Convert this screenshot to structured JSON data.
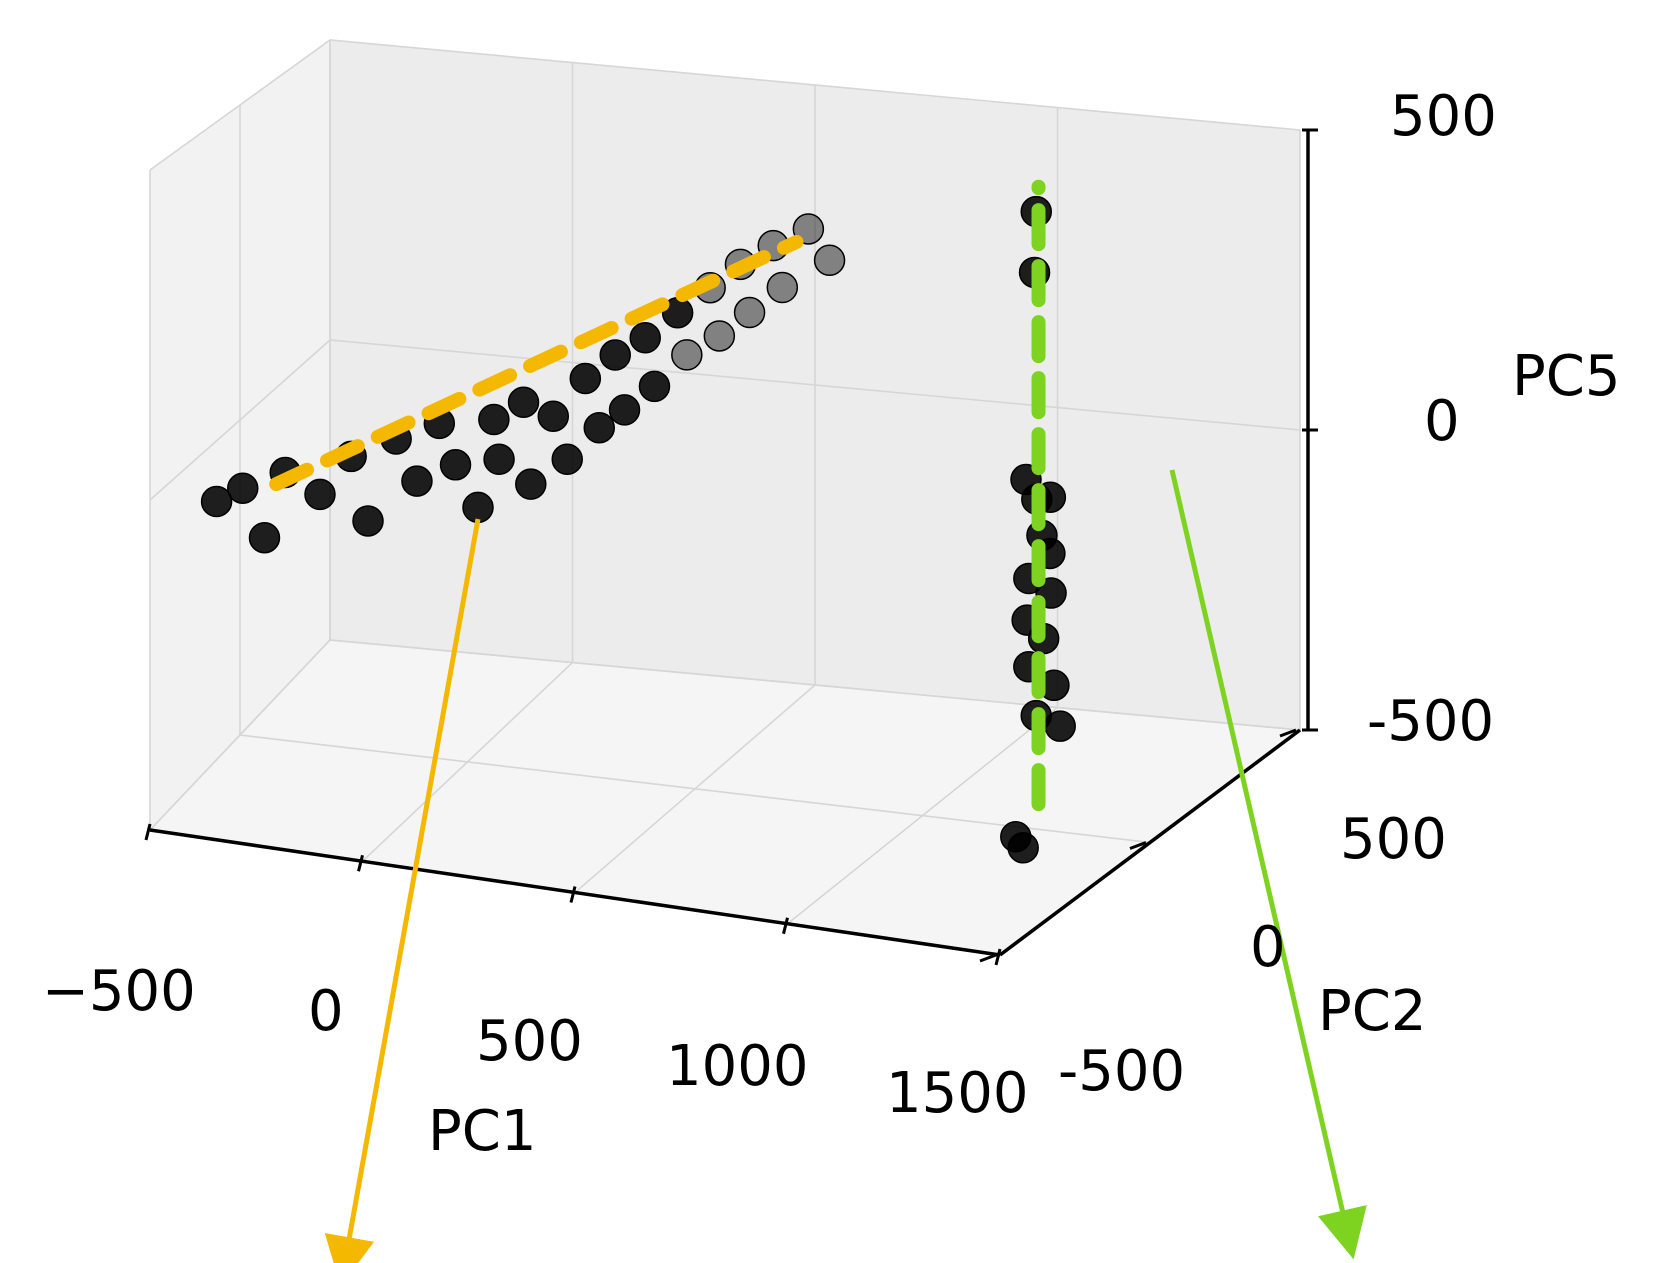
{
  "chart_data": {
    "type": "scatter",
    "projection": "3d",
    "xlabel": "PC1",
    "ylabel": "PC2",
    "zlabel": "PC5",
    "x_ticks": [
      "−500",
      "0",
      "500",
      "1000",
      "1500"
    ],
    "y_ticks": [
      "-500",
      "0",
      "500"
    ],
    "z_ticks": [
      "-500",
      "0",
      "500"
    ],
    "xlim": [
      -700,
      1700
    ],
    "ylim": [
      -800,
      800
    ],
    "zlim": [
      -550,
      620
    ],
    "grid": true,
    "colors": {
      "points": "#000000",
      "pc1_direction": "#f5b800",
      "pc5_direction": "#7ed321",
      "pane": "#f2f2f2",
      "grid": "#d6d6d6"
    },
    "series": [
      {
        "values": [
          {
            "x": -520,
            "y": -80,
            "z": -110
          },
          {
            "x": -470,
            "y": -60,
            "z": -90
          },
          {
            "x": -430,
            "y": -40,
            "z": -170
          },
          {
            "x": -380,
            "y": -50,
            "z": -60
          },
          {
            "x": -320,
            "y": -10,
            "z": -100
          },
          {
            "x": -260,
            "y": 10,
            "z": -40
          },
          {
            "x": -210,
            "y": -20,
            "z": -130
          },
          {
            "x": -170,
            "y": 30,
            "z": -10
          },
          {
            "x": -120,
            "y": 20,
            "z": -70
          },
          {
            "x": -80,
            "y": 40,
            "z": 20
          },
          {
            "x": -40,
            "y": 30,
            "z": -40
          },
          {
            "x": 0,
            "y": 50,
            "z": -110
          },
          {
            "x": 30,
            "y": 60,
            "z": 30
          },
          {
            "x": 60,
            "y": 20,
            "z": -20
          },
          {
            "x": 90,
            "y": 70,
            "z": 60
          },
          {
            "x": 120,
            "y": 40,
            "z": -60
          },
          {
            "x": 150,
            "y": 80,
            "z": 40
          },
          {
            "x": 190,
            "y": 60,
            "z": -20
          },
          {
            "x": 210,
            "y": 100,
            "z": 100
          },
          {
            "x": 250,
            "y": 80,
            "z": 30
          },
          {
            "x": 270,
            "y": 110,
            "z": 140
          },
          {
            "x": 300,
            "y": 90,
            "z": 60
          },
          {
            "x": 330,
            "y": 120,
            "z": 170
          },
          {
            "x": 360,
            "y": 100,
            "z": 100
          },
          {
            "x": 390,
            "y": 140,
            "z": 210
          },
          {
            "x": 420,
            "y": 120,
            "z": 150
          },
          {
            "x": 450,
            "y": 160,
            "z": 250
          },
          {
            "x": 480,
            "y": 140,
            "z": 180
          },
          {
            "x": 510,
            "y": 170,
            "z": 290
          },
          {
            "x": 540,
            "y": 150,
            "z": 220
          },
          {
            "x": 570,
            "y": 190,
            "z": 320
          },
          {
            "x": 600,
            "y": 170,
            "z": 260
          },
          {
            "x": 640,
            "y": 200,
            "z": 350
          },
          {
            "x": 680,
            "y": 210,
            "z": 300
          },
          {
            "x": 1250,
            "y": 0,
            "z": 480
          },
          {
            "x": 1240,
            "y": 10,
            "z": 380
          },
          {
            "x": 1240,
            "y": -20,
            "z": 60
          },
          {
            "x": 1245,
            "y": 10,
            "z": 20
          },
          {
            "x": 1300,
            "y": -30,
            "z": 40
          },
          {
            "x": 1250,
            "y": 20,
            "z": -40
          },
          {
            "x": 1280,
            "y": 0,
            "z": -60
          },
          {
            "x": 1240,
            "y": -10,
            "z": -100
          },
          {
            "x": 1270,
            "y": 20,
            "z": -130
          },
          {
            "x": 1230,
            "y": 0,
            "z": -170
          },
          {
            "x": 1260,
            "y": 10,
            "z": -200
          },
          {
            "x": 1240,
            "y": -10,
            "z": -240
          },
          {
            "x": 1270,
            "y": 30,
            "z": -280
          },
          {
            "x": 1250,
            "y": 0,
            "z": -320
          },
          {
            "x": 1290,
            "y": 20,
            "z": -340
          },
          {
            "x": 1230,
            "y": -40,
            "z": -500
          },
          {
            "x": 1240,
            "y": -30,
            "z": -520
          }
        ]
      }
    ],
    "direction_lines": [
      {
        "from": {
          "x": -400,
          "y": -50,
          "z": -80
        },
        "to": {
          "x": 620,
          "y": 190,
          "z": 330
        }
      },
      {
        "from": {
          "x": 1255,
          "y": 0,
          "z": -460
        },
        "to": {
          "x": 1255,
          "y": 0,
          "z": 520
        }
      }
    ]
  }
}
